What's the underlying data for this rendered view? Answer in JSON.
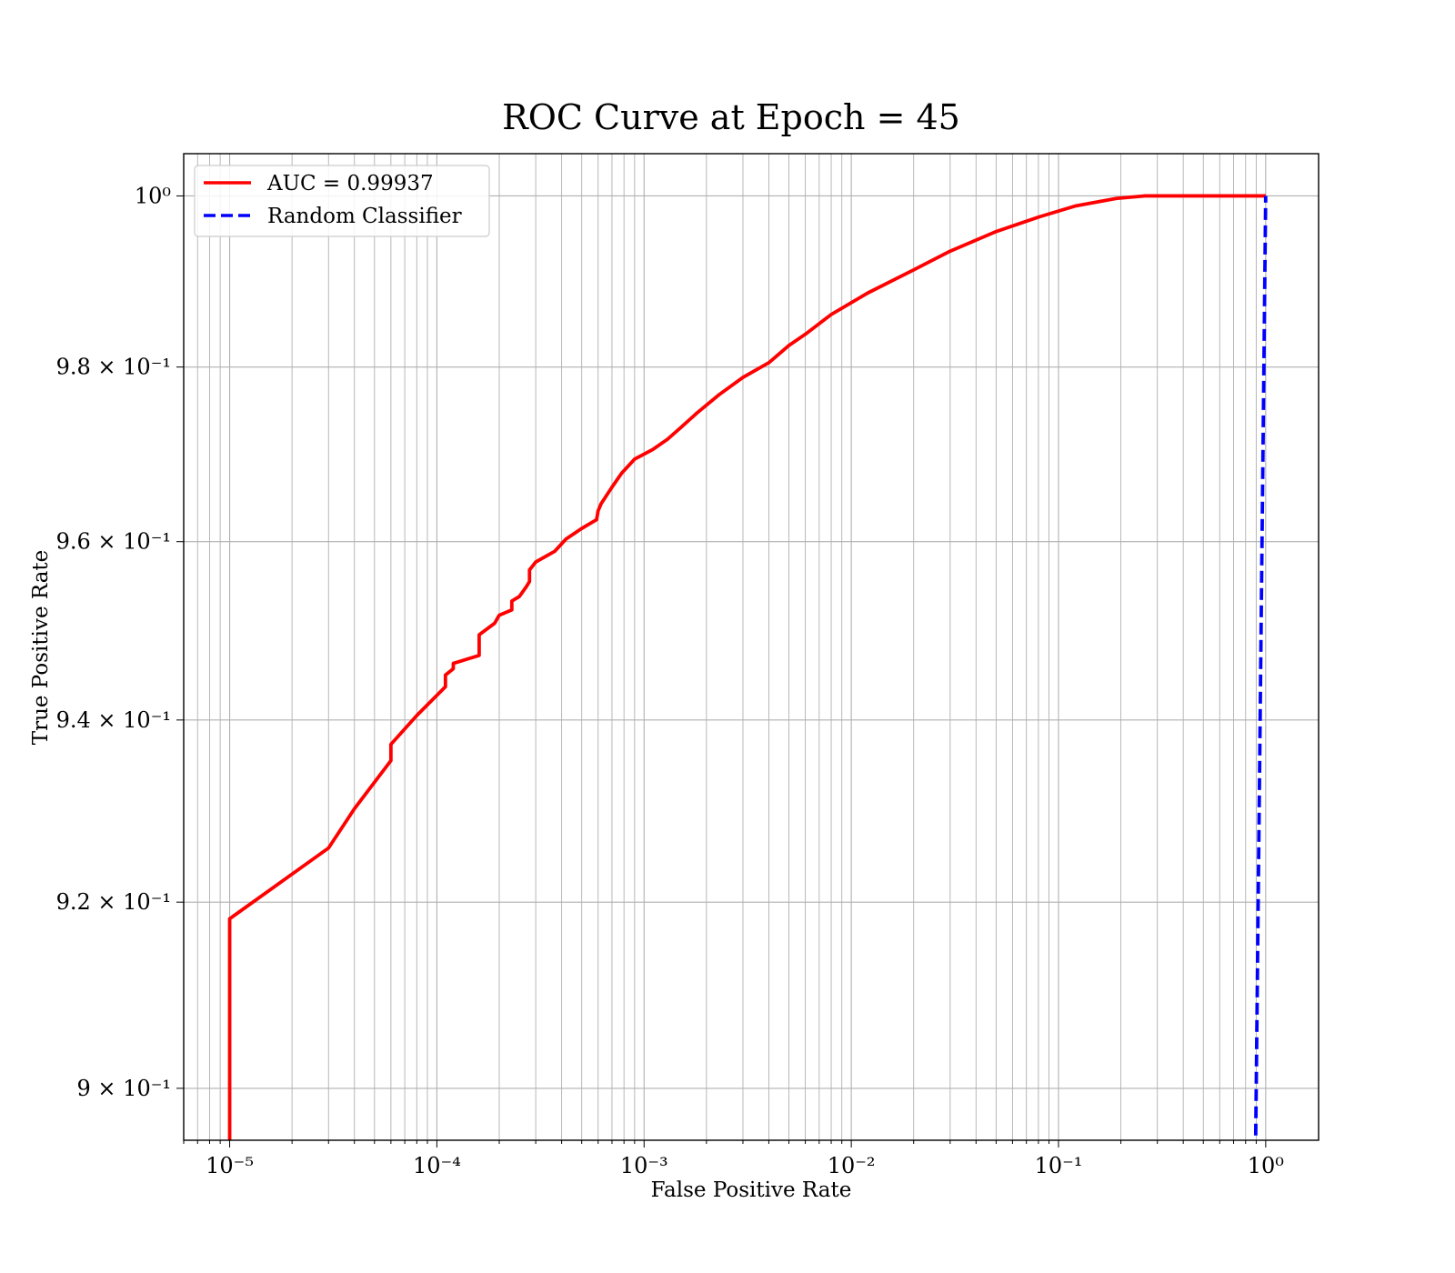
{
  "chart_data": {
    "type": "line",
    "title": "ROC Curve at Epoch = 45",
    "xlabel": "False Positive Rate",
    "ylabel": "True Positive Rate",
    "xscale": "log",
    "yscale": "log",
    "xlim": [
      6e-06,
      1.8
    ],
    "ylim": [
      0.8945,
      1.005
    ],
    "grid": "on (major and minor, x and y)",
    "legend_position": "top-left",
    "x_ticks": [
      {
        "value": 1e-05,
        "label": "10⁻⁵"
      },
      {
        "value": 0.0001,
        "label": "10⁻⁴"
      },
      {
        "value": 0.001,
        "label": "10⁻³"
      },
      {
        "value": 0.01,
        "label": "10⁻²"
      },
      {
        "value": 0.1,
        "label": "10⁻¹"
      },
      {
        "value": 1,
        "label": "10⁰"
      }
    ],
    "y_ticks": [
      {
        "value": 0.9,
        "label": "9 × 10⁻¹"
      },
      {
        "value": 0.92,
        "label": "9.2 × 10⁻¹"
      },
      {
        "value": 0.94,
        "label": "9.4 × 10⁻¹"
      },
      {
        "value": 0.96,
        "label": "9.6 × 10⁻¹"
      },
      {
        "value": 0.98,
        "label": "9.8 × 10⁻¹"
      },
      {
        "value": 1.0,
        "label": "10⁰"
      }
    ],
    "series": [
      {
        "name": "AUC = 0.99937",
        "color": "#ff0000",
        "style": "solid",
        "x": [
          1e-05,
          1e-05,
          3e-05,
          4e-05,
          6e-05,
          6e-05,
          8e-05,
          0.00011,
          0.00011,
          0.00012,
          0.00012,
          0.00016,
          0.00016,
          0.00019,
          0.0002,
          0.00023,
          0.00023,
          0.00025,
          0.00027,
          0.00028,
          0.00028,
          0.0003,
          0.00037,
          0.00042,
          0.0005,
          0.00059,
          0.0006,
          0.00062,
          0.0007,
          0.00078,
          0.0009,
          0.0011,
          0.0013,
          0.0015,
          0.0018,
          0.0023,
          0.003,
          0.004,
          0.005,
          0.006,
          0.008,
          0.012,
          0.02,
          0.03,
          0.05,
          0.08,
          0.12,
          0.19,
          0.26,
          1.0
        ],
        "y": [
          0.8945,
          0.9182,
          0.9259,
          0.9302,
          0.9355,
          0.9373,
          0.9405,
          0.9437,
          0.945,
          0.9457,
          0.9463,
          0.9472,
          0.9495,
          0.9508,
          0.9517,
          0.9523,
          0.9533,
          0.9538,
          0.9549,
          0.9555,
          0.9568,
          0.9577,
          0.9589,
          0.9603,
          0.9615,
          0.9625,
          0.9635,
          0.9643,
          0.9662,
          0.9678,
          0.9694,
          0.9705,
          0.9717,
          0.973,
          0.9747,
          0.9768,
          0.9788,
          0.9805,
          0.9825,
          0.9838,
          0.9861,
          0.9886,
          0.9913,
          0.9935,
          0.9958,
          0.9975,
          0.9988,
          0.9997,
          1.0,
          1.0
        ]
      },
      {
        "name": "Random Classifier",
        "color": "#0000ff",
        "style": "dashed",
        "x": [
          0.895,
          1.0
        ],
        "y": [
          0.895,
          1.0
        ]
      }
    ]
  }
}
